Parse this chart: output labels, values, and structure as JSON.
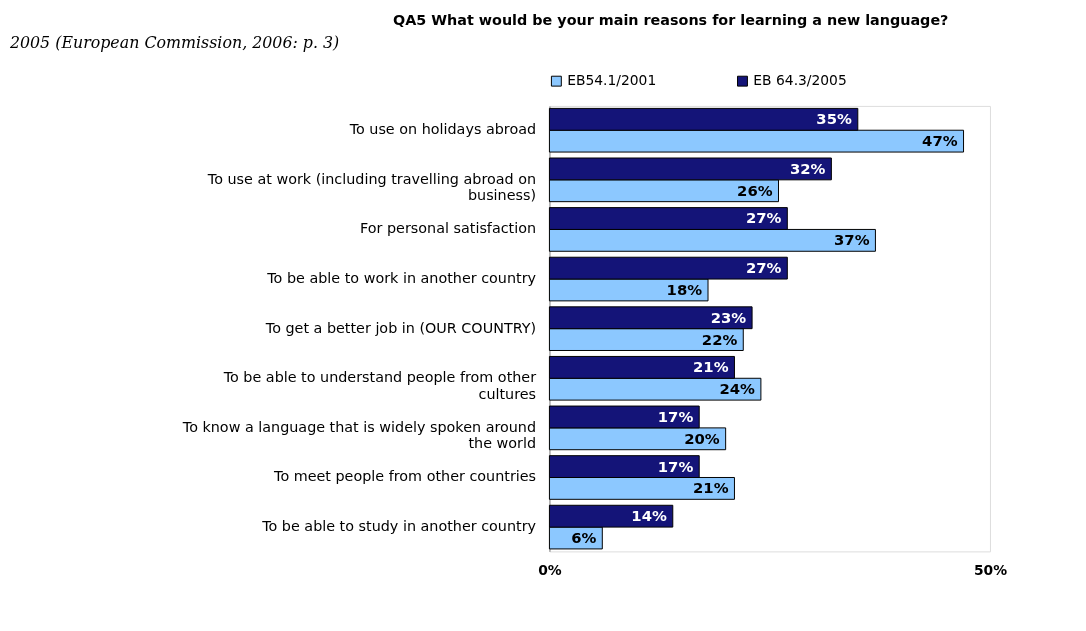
{
  "chart_data": {
    "type": "bar",
    "orientation": "horizontal",
    "title": "QA5 What would be your main reasons for learning a new language?",
    "annotations": [
      "2005 (European Commission, 2006: p. 3)"
    ],
    "categories": [
      "To use on holidays abroad",
      "To use at work (including travelling abroad on business)",
      "For personal satisfaction",
      "To be able to work in another country",
      "To get a better job in (OUR COUNTRY)",
      "To be able to understand people from other cultures",
      "To know a language that is widely spoken around the world",
      "To meet people from other countries",
      "To be able to study in another country"
    ],
    "series": [
      {
        "name": "EB54.1/2001",
        "color": "#8cc8ff",
        "values": [
          47,
          26,
          37,
          18,
          22,
          24,
          20,
          21,
          6
        ],
        "value_labels": [
          "47%",
          "26%",
          "37%",
          "18%",
          "22%",
          "24%",
          "20%",
          "21%",
          "6%"
        ]
      },
      {
        "name": "EB 64.3/2005",
        "color": "#141478",
        "values": [
          35,
          32,
          27,
          27,
          23,
          21,
          17,
          17,
          14
        ],
        "value_labels": [
          "35%",
          "32%",
          "27%",
          "27%",
          "23%",
          "21%",
          "17%",
          "17%",
          "14%"
        ]
      }
    ],
    "xlim": [
      0,
      50
    ],
    "xticks": [
      {
        "value": 0,
        "label": "0%"
      },
      {
        "value": 50,
        "label": "50%"
      }
    ],
    "legend": "top"
  }
}
